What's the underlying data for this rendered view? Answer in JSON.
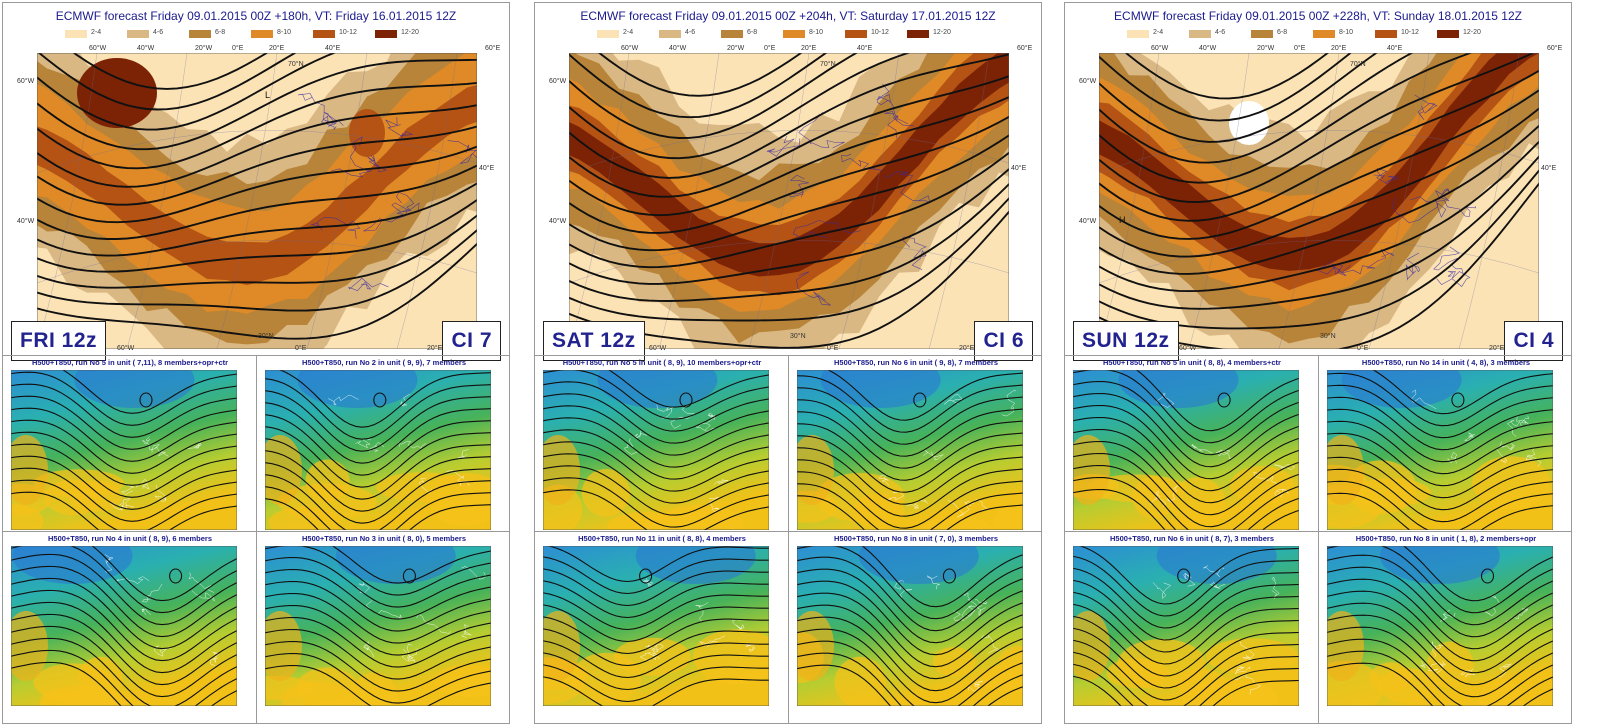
{
  "legend_classes": [
    {
      "label": "2-4",
      "color": "#fbe3b6"
    },
    {
      "label": "4-6",
      "color": "#d9b884"
    },
    {
      "label": "6-8",
      "color": "#b78439"
    },
    {
      "label": "8-10",
      "color": "#df8a26"
    },
    {
      "label": "10-12",
      "color": "#b55314"
    },
    {
      "label": "12-20",
      "color": "#7c2306"
    }
  ],
  "panels": [
    {
      "title": "ECMWF forecast Friday    09.01.2015 00Z +180h, VT: Friday    16.01.2015 12Z",
      "day_label": "FRI 12z",
      "ci_label": "CI  7",
      "clusters": [
        "H500+T850, run No  5 in unit ( 7,11),  8 members+opr+ctr",
        "H500+T850, run No  2 in unit ( 9, 9),  7 members",
        "H500+T850, run No  4 in unit ( 8, 9),  6 members",
        "H500+T850, run No  3 in unit ( 8, 0),  5 members"
      ]
    },
    {
      "title": "ECMWF forecast Friday    09.01.2015 00Z +204h, VT: Saturday   17.01.2015 12Z",
      "day_label": "SAT 12z",
      "ci_label": "CI  6",
      "clusters": [
        "H500+T850, run No  5 in unit ( 8, 9), 10 members+opr+ctr",
        "H500+T850, run No  6 in unit ( 9, 8),  7 members",
        "H500+T850, run No 11 in unit ( 8, 8),  4 members",
        "H500+T850, run No  8 in unit ( 7, 0),  3 members"
      ]
    },
    {
      "title": "ECMWF forecast Friday    09.01.2015 00Z +228h, VT: Sunday     18.01.2015 12Z",
      "day_label": "SUN 12z",
      "ci_label": "CI  4",
      "clusters": [
        "H500+T850, run No  5 in unit ( 8, 8),  4 members+ctr",
        "H500+T850, run No 14 in unit ( 4, 8),  3 members",
        "H500+T850, run No  6 in unit ( 8, 7),  3 members",
        "H500+T850, run No  8 in unit ( 1, 8),  2 members+opr"
      ]
    }
  ],
  "map_labels": {
    "top": [
      "60°W",
      "40°W",
      "20°W",
      "0°E",
      "20°E",
      "40°E",
      "60°E"
    ],
    "left": [
      "60°W",
      "40°W"
    ],
    "right": [
      "40°E"
    ],
    "bottom": [
      "60°W",
      "0°E",
      "20°E"
    ],
    "north": "70°N",
    "south": "30°N",
    "high": "H",
    "low": "L"
  }
}
